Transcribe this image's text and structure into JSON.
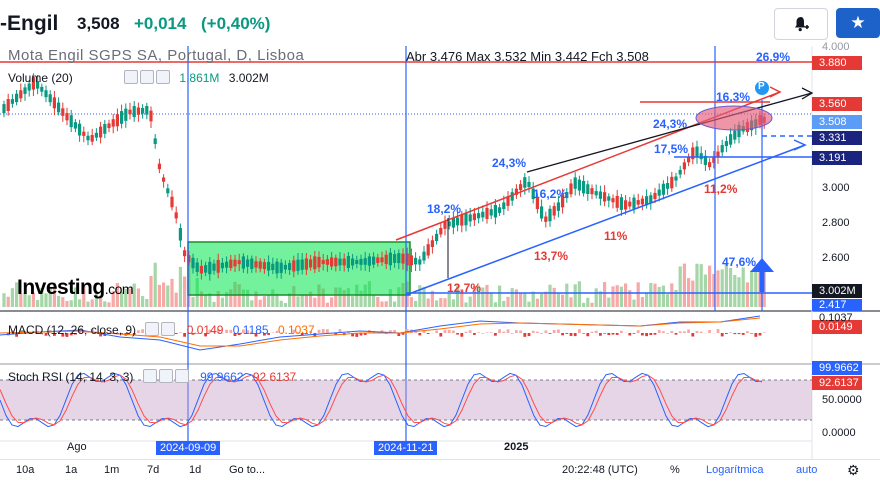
{
  "header": {
    "ticker": "-Engil",
    "price": "3,508",
    "change": "+0,014",
    "change_pct": "(+0,40%)",
    "alert_icon": "bell-plus-icon",
    "star_icon": "star-icon",
    "accent_color": "#1d62c9",
    "up_color": "#089981"
  },
  "main_pane": {
    "symbol": "Mota Engil SGPS SA, Portugal, D, Lisboa",
    "ohlc": "Abr 3.476   Max 3.532   Min 3.442   Fch 3.508",
    "volume_label": "Volume (20)",
    "volume_ma": "1.861M",
    "volume_value": "3.002M",
    "price_ticks": [
      "4.000",
      "3.000",
      "2.800",
      "2.600"
    ],
    "price_tags": [
      "3.880",
      "3.560",
      "3.508",
      "3.331",
      "3.191",
      "3.002M",
      "2.417"
    ],
    "percent_labels": {
      "p26_9": "26,9%",
      "p16_3": "16,3%",
      "p24_3a": "24,3%",
      "p17_5": "17,5%",
      "p11_2": "11,2%",
      "p24_3b": "24,3%",
      "p16_2": "16,2%",
      "p18_2": "18,2%",
      "p13_7": "13,7%",
      "p11": "11%",
      "p12_7": "12,7%",
      "p47_6": "47,6%"
    },
    "marker_p": "P",
    "logo_text": "Investing",
    "logo_suffix": ".com"
  },
  "macd_pane": {
    "label": "MACD (12, 26, close, 9)",
    "v1": "0.0149",
    "v2": "0.1185",
    "v3": "0.1037",
    "tag_top": "0.1037",
    "tag": "0.0149"
  },
  "stoch_pane": {
    "label": "Stoch RSI (14, 14, 3, 3)",
    "k": "99.9662",
    "d": "92.6137",
    "ticks": [
      "50.0000",
      "0.0000"
    ],
    "tag_k": "99.9662",
    "tag_d": "92.6137"
  },
  "x_axis": {
    "ago": "Ago",
    "d1": "2024-09-09",
    "d2": "2024-11-21",
    "y2025": "2025",
    "time": "20:22:48 (UTC)"
  },
  "bottom_bar": {
    "r10a": "10a",
    "r1a": "1a",
    "r1m": "1m",
    "r7d": "7d",
    "r1d": "1d",
    "goto": "Go to...",
    "pct": "%",
    "log": "Logarítmica",
    "auto": "auto",
    "gear_icon": "gear-icon"
  }
}
